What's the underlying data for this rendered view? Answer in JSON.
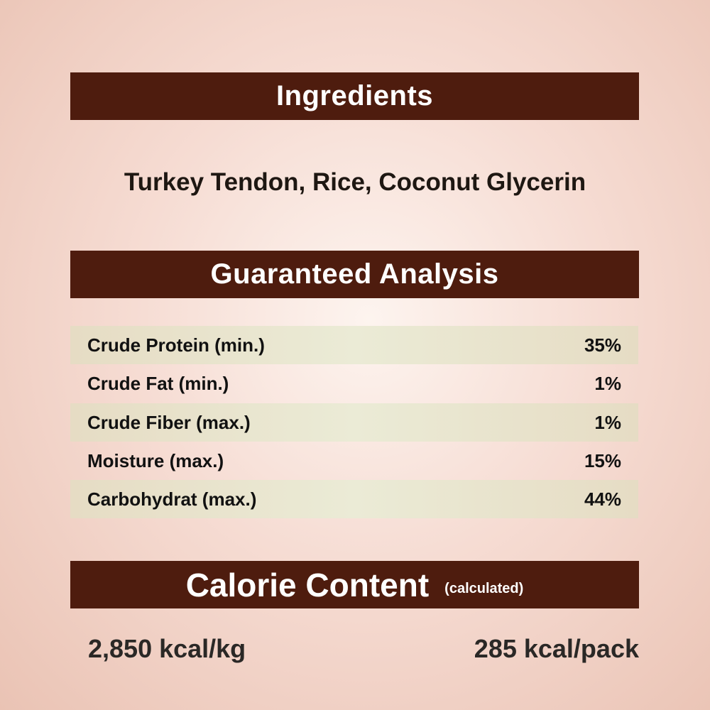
{
  "ingredients": {
    "title": "Ingredients",
    "text": "Turkey Tendon, Rice, Coconut Glycerin"
  },
  "analysis": {
    "title": "Guaranteed Analysis",
    "rows": [
      {
        "label": "Crude Protein (min.)",
        "value": "35%"
      },
      {
        "label": "Crude Fat (min.)",
        "value": "1%"
      },
      {
        "label": "Crude Fiber (max.)",
        "value": "1%"
      },
      {
        "label": "Moisture (max.)",
        "value": "15%"
      },
      {
        "label": "Carbohydrat (max.)",
        "value": "44%"
      }
    ]
  },
  "calorie": {
    "title": "Calorie Content",
    "subtitle": "(calculated)",
    "per_kg": "2,850 kcal/kg",
    "per_pack": "285 kcal/pack"
  },
  "colors": {
    "header_bar": "#4e1c0e",
    "stripe": "#e8e2cc"
  }
}
